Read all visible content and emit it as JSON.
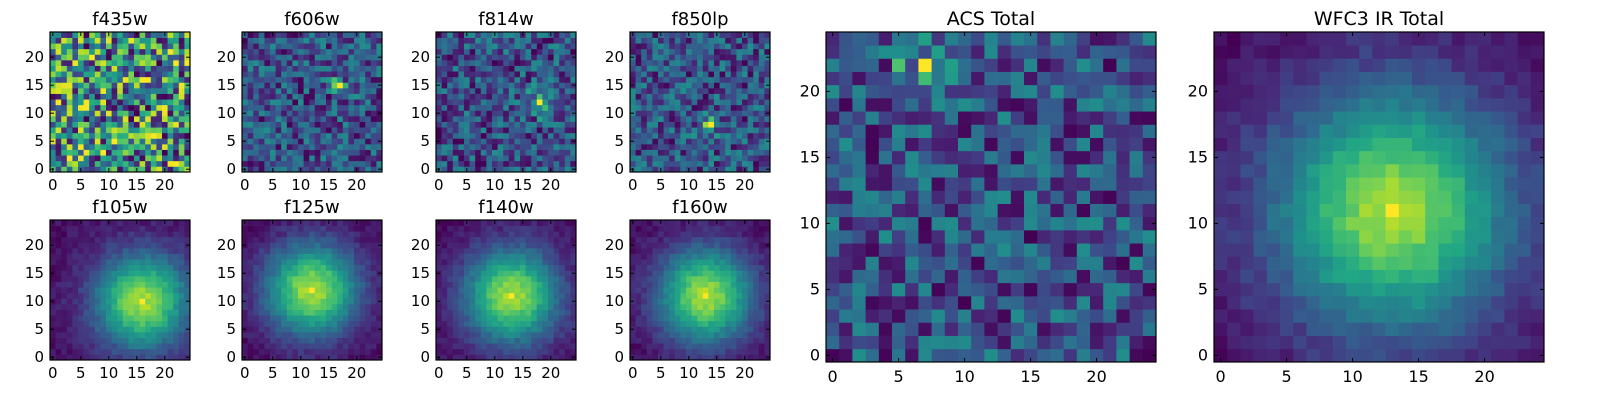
{
  "figure": {
    "description_free": true
  },
  "chart_data": [
    {
      "type": "heatmap",
      "title": "f435w",
      "xticks": [
        "0",
        "5",
        "10",
        "15",
        "20"
      ],
      "yticks": [
        "0",
        "5",
        "10",
        "15",
        "20"
      ],
      "xlim": [
        0,
        25
      ],
      "ylim": [
        0,
        25
      ],
      "grid": false,
      "colormap": "viridis",
      "pattern": "noise",
      "peak": null
    },
    {
      "type": "heatmap",
      "title": "f606w",
      "xticks": [
        "0",
        "5",
        "10",
        "15",
        "20"
      ],
      "yticks": [
        "0",
        "5",
        "10",
        "15",
        "20"
      ],
      "xlim": [
        0,
        25
      ],
      "ylim": [
        0,
        25
      ],
      "grid": false,
      "colormap": "viridis",
      "pattern": "noise",
      "peak": [
        17,
        15
      ]
    },
    {
      "type": "heatmap",
      "title": "f814w",
      "xticks": [
        "0",
        "5",
        "10",
        "15",
        "20"
      ],
      "yticks": [
        "0",
        "5",
        "10",
        "15",
        "20"
      ],
      "xlim": [
        0,
        25
      ],
      "ylim": [
        0,
        25
      ],
      "grid": false,
      "colormap": "viridis",
      "pattern": "noise",
      "peak": [
        18,
        12
      ]
    },
    {
      "type": "heatmap",
      "title": "f850lp",
      "xticks": [
        "0",
        "5",
        "10",
        "15",
        "20"
      ],
      "yticks": [
        "0",
        "5",
        "10",
        "15",
        "20"
      ],
      "xlim": [
        0,
        25
      ],
      "ylim": [
        0,
        25
      ],
      "grid": false,
      "colormap": "viridis",
      "pattern": "noise",
      "peak": [
        14,
        8
      ]
    },
    {
      "type": "heatmap",
      "title": "f105w",
      "xticks": [
        "0",
        "5",
        "10",
        "15",
        "20"
      ],
      "yticks": [
        "0",
        "5",
        "10",
        "15",
        "20"
      ],
      "xlim": [
        0,
        25
      ],
      "ylim": [
        0,
        25
      ],
      "grid": false,
      "colormap": "viridis",
      "pattern": "blob",
      "peak": [
        16,
        10
      ]
    },
    {
      "type": "heatmap",
      "title": "f125w",
      "xticks": [
        "0",
        "5",
        "10",
        "15",
        "20"
      ],
      "yticks": [
        "0",
        "5",
        "10",
        "15",
        "20"
      ],
      "xlim": [
        0,
        25
      ],
      "ylim": [
        0,
        25
      ],
      "grid": false,
      "colormap": "viridis",
      "pattern": "blob",
      "peak": [
        12,
        12
      ]
    },
    {
      "type": "heatmap",
      "title": "f140w",
      "xticks": [
        "0",
        "5",
        "10",
        "15",
        "20"
      ],
      "yticks": [
        "0",
        "5",
        "10",
        "15",
        "20"
      ],
      "xlim": [
        0,
        25
      ],
      "ylim": [
        0,
        25
      ],
      "grid": false,
      "colormap": "viridis",
      "pattern": "blob",
      "peak": [
        13,
        11
      ]
    },
    {
      "type": "heatmap",
      "title": "f160w",
      "xticks": [
        "0",
        "5",
        "10",
        "15",
        "20"
      ],
      "yticks": [
        "0",
        "5",
        "10",
        "15",
        "20"
      ],
      "xlim": [
        0,
        25
      ],
      "ylim": [
        0,
        25
      ],
      "grid": false,
      "colormap": "viridis",
      "pattern": "blob",
      "peak": [
        13,
        11
      ]
    },
    {
      "type": "heatmap",
      "title": "ACS Total",
      "xticks": [
        "0",
        "5",
        "10",
        "15",
        "20"
      ],
      "yticks": [
        "0",
        "5",
        "10",
        "15",
        "20"
      ],
      "xlim": [
        0,
        25
      ],
      "ylim": [
        0,
        25
      ],
      "grid": false,
      "colormap": "viridis",
      "pattern": "noise",
      "peak": [
        7,
        22
      ]
    },
    {
      "type": "heatmap",
      "title": "WFC3 IR Total",
      "xticks": [
        "0",
        "5",
        "10",
        "15",
        "20"
      ],
      "yticks": [
        "0",
        "5",
        "10",
        "15",
        "20"
      ],
      "xlim": [
        0,
        25
      ],
      "ylim": [
        0,
        25
      ],
      "grid": false,
      "colormap": "viridis",
      "pattern": "blob",
      "peak": [
        13,
        11
      ]
    }
  ]
}
